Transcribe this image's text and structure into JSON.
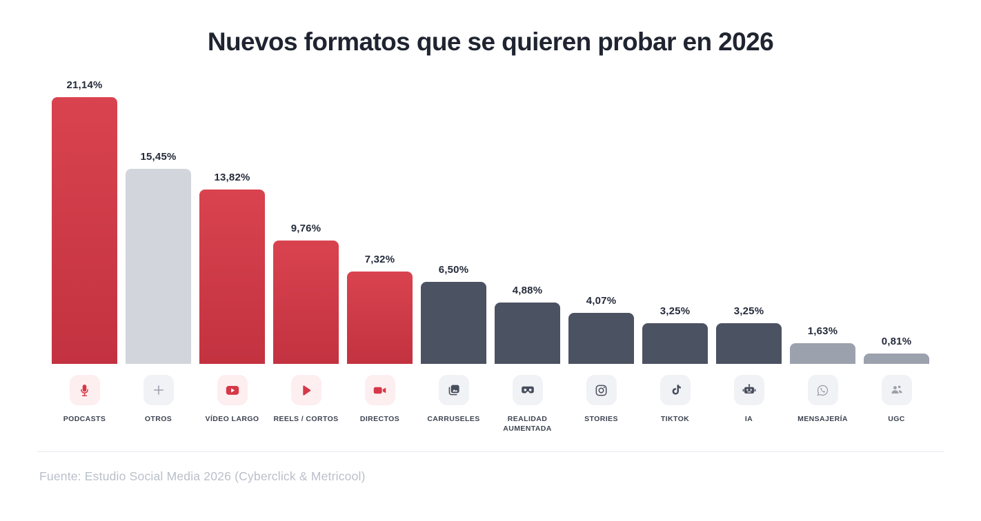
{
  "title": "Nuevos formatos que se quieren probar en 2026",
  "footer": {
    "source": "Fuente: Estudio Social Media 2026 (Cyberclick & Metricool)"
  },
  "chart_data": {
    "type": "bar",
    "title": "Nuevos formatos que se quieren probar en 2026",
    "categories": [
      "PODCASTS",
      "OTROS",
      "VÍDEO LARGO",
      "REELS / CORTOS",
      "DIRECTOS",
      "CARRUSELES",
      "REALIDAD AUMENTADA",
      "STORIES",
      "TIKTOK",
      "IA",
      "MENSAJERÍA",
      "UGC"
    ],
    "values": [
      21.14,
      15.45,
      13.82,
      9.76,
      7.32,
      6.5,
      4.88,
      4.07,
      3.25,
      3.25,
      1.63,
      0.81
    ],
    "value_labels": [
      "21,14%",
      "15,45%",
      "13,82%",
      "9,76%",
      "7,32%",
      "6,50%",
      "4,88%",
      "4,07%",
      "3,25%",
      "3,25%",
      "1,63%",
      "0,81%"
    ],
    "unit": "%",
    "ylim": [
      0,
      22
    ],
    "grid": false,
    "legend": false,
    "xlabel": "",
    "ylabel": "",
    "bar_color_keys": [
      "red",
      "light",
      "red",
      "red",
      "red",
      "dark",
      "dark",
      "dark",
      "dark",
      "dark",
      "mid",
      "mid"
    ],
    "icons": [
      "microphone-icon",
      "plus-icon",
      "youtube-icon",
      "play-icon",
      "videocam-icon",
      "carousel-icon",
      "vr-headset-icon",
      "instagram-icon",
      "tiktok-icon",
      "robot-icon",
      "whatsapp-icon",
      "people-icon"
    ]
  },
  "colors": {
    "bar_red_top": "#d9434f",
    "bar_red_bottom": "#c33240",
    "bar_light_gray": "#d2d5dc",
    "bar_dark_slate": "#4b5261",
    "bar_mid_gray": "#9ba1ad",
    "icon_bg_pink": "#fdeef0",
    "icon_bg_gray": "#f1f2f5",
    "glyph_red": "#d63847",
    "glyph_dark": "#474e5d",
    "glyph_gray": "#9aa0ab",
    "value_label_text": "#242b3a",
    "category_text": "#3d4350",
    "title_text": "#1f2430",
    "source_text": "#b9bfca",
    "divider": "#e7e9ee"
  }
}
